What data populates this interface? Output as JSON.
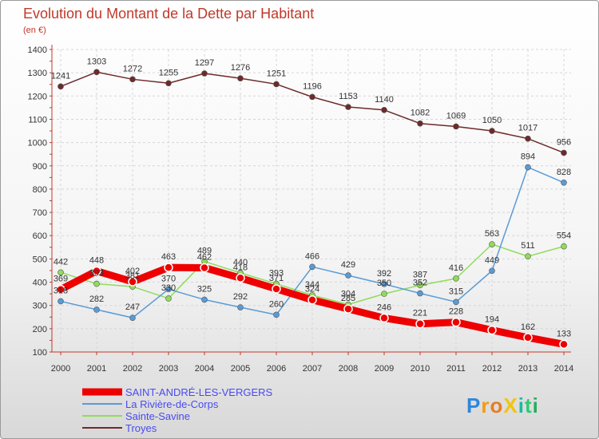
{
  "chart_data": {
    "type": "line",
    "title": "Evolution du Montant de la Dette par Habitant",
    "subtitle": "(en €)",
    "xlabel": "",
    "ylabel": "",
    "ylim": [
      100,
      1400
    ],
    "yticks": [
      100,
      200,
      300,
      400,
      500,
      600,
      700,
      800,
      900,
      1000,
      1100,
      1200,
      1300,
      1400
    ],
    "x": [
      2000,
      2001,
      2002,
      2003,
      2004,
      2005,
      2006,
      2007,
      2008,
      2009,
      2010,
      2011,
      2012,
      2013,
      2014
    ],
    "grid": true,
    "legend_position": "bottom-left",
    "series": [
      {
        "name": "Troyes",
        "color": "#6e2a2a",
        "values": [
          1241,
          1303,
          1272,
          1255,
          1297,
          1276,
          1251,
          1196,
          1153,
          1140,
          1082,
          1069,
          1050,
          1017,
          956
        ]
      },
      {
        "name": "Sainte-Savine",
        "color": "#8fdc5a",
        "values": [
          442,
          393,
          381,
          330,
          489,
          440,
          393,
          344,
          304,
          350,
          387,
          416,
          563,
          511,
          554
        ]
      },
      {
        "name": "La Rivière-de-Corps",
        "color": "#5a9bd5",
        "values": [
          318,
          282,
          247,
          370,
          325,
          292,
          260,
          466,
          429,
          392,
          352,
          315,
          449,
          894,
          828
        ]
      },
      {
        "name": "SAINT-ANDRÉ-LES-VERGERS",
        "color": "#ee0000",
        "values": [
          369,
          448,
          402,
          463,
          462,
          418,
          371,
          324,
          285,
          246,
          221,
          228,
          194,
          162,
          133
        ]
      }
    ]
  },
  "legend": [
    {
      "name": "SAINT-ANDRÉ-LES-VERGERS",
      "color": "#ee0000"
    },
    {
      "name": "La Rivière-de-Corps",
      "color": "#5a9bd5"
    },
    {
      "name": "Sainte-Savine",
      "color": "#8fdc5a"
    },
    {
      "name": "Troyes",
      "color": "#6e2a2a"
    }
  ],
  "logo": {
    "text": "ProXiti"
  }
}
